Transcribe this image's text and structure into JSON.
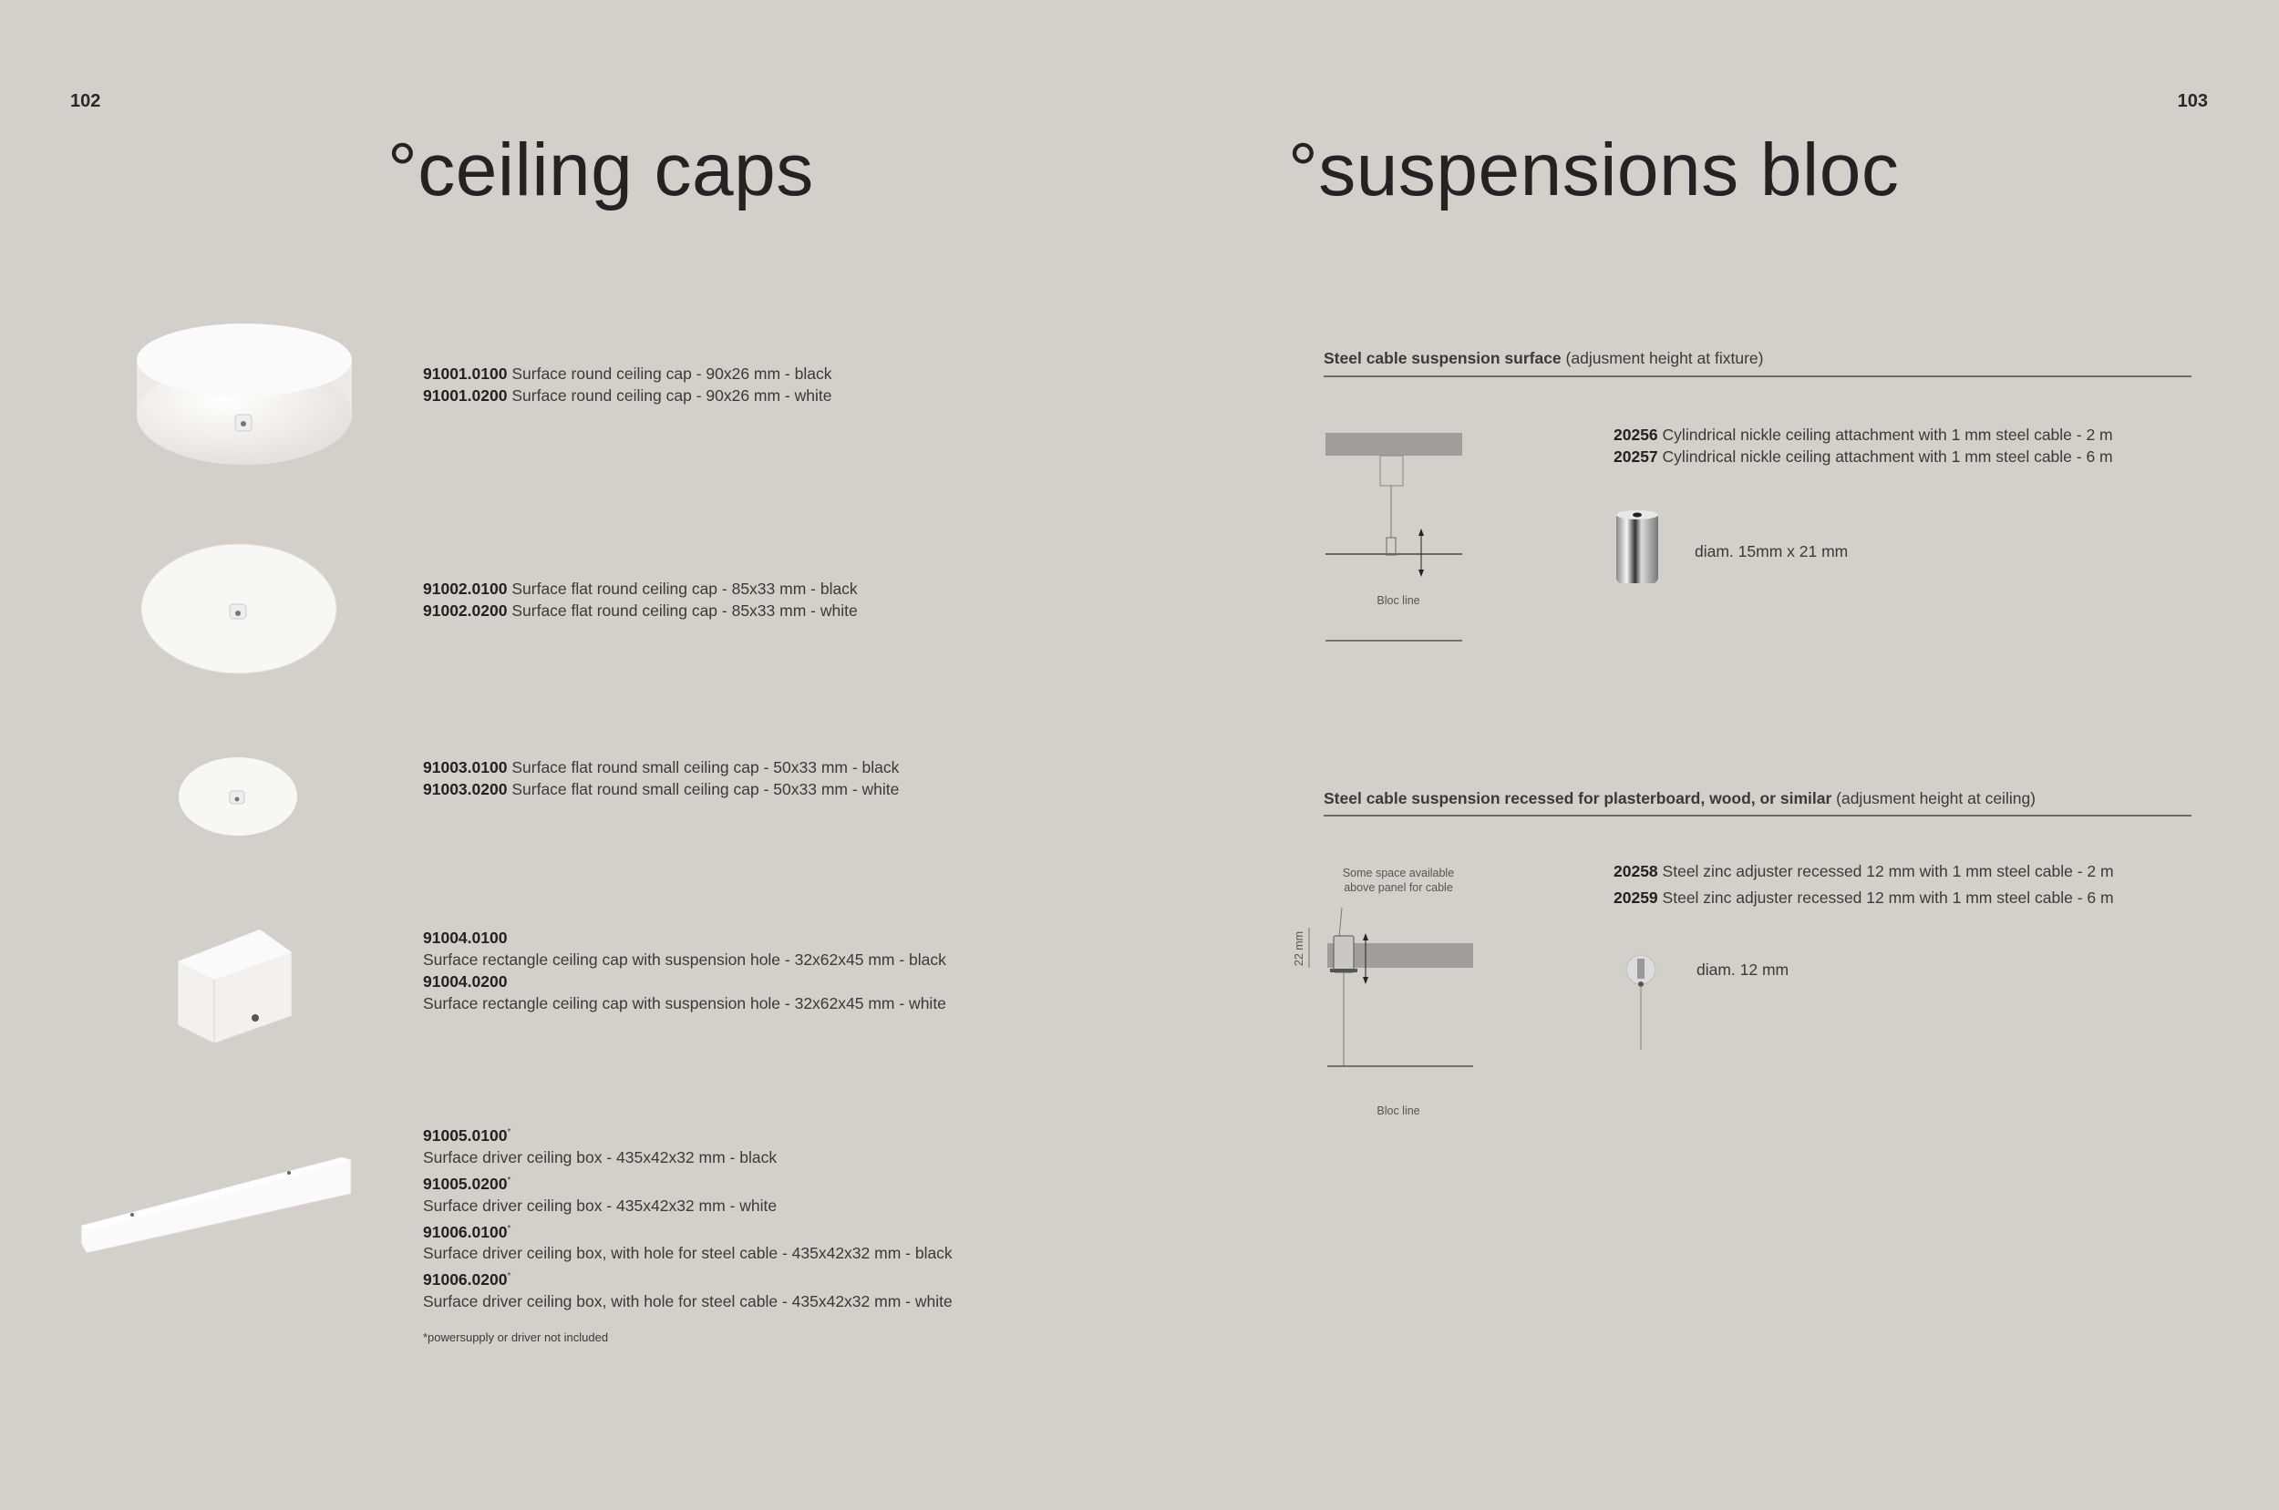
{
  "left_page": {
    "page_number": "102",
    "title": "°ceiling caps",
    "products": [
      {
        "lines": [
          {
            "code": "91001.0100",
            "desc": "Surface round ceiling cap - 90x26 mm - black"
          },
          {
            "code": "91001.0200",
            "desc": "Surface round ceiling cap - 90x26 mm - white"
          }
        ]
      },
      {
        "lines": [
          {
            "code": "91002.0100",
            "desc": "Surface flat round ceiling cap - 85x33 mm - black"
          },
          {
            "code": "91002.0200",
            "desc": "Surface flat round ceiling cap - 85x33 mm - white"
          }
        ]
      },
      {
        "lines": [
          {
            "code": "91003.0100",
            "desc": "Surface flat round small ceiling cap - 50x33 mm - black"
          },
          {
            "code": "91003.0200",
            "desc": "Surface flat round small ceiling cap - 50x33 mm - white"
          }
        ]
      },
      {
        "lines": [
          {
            "code": "91004.0100",
            "desc": "Surface rectangle ceiling cap with suspension hole - 32x62x45 mm - black"
          },
          {
            "code": "91004.0200",
            "desc": "Surface rectangle ceiling cap with suspension hole - 32x62x45 mm - white"
          }
        ]
      },
      {
        "lines": [
          {
            "code": "91005.0100",
            "mark": "*",
            "desc": "Surface driver ceiling box - 435x42x32 mm - black"
          },
          {
            "code": "91005.0200",
            "mark": "*",
            "desc": "Surface driver ceiling box - 435x42x32 mm - white"
          },
          {
            "code": "91006.0100",
            "mark": "*",
            "desc": "Surface driver ceiling box, with hole for steel cable - 435x42x32 mm - black"
          },
          {
            "code": "91006.0200",
            "mark": "*",
            "desc": "Surface driver ceiling box, with hole for steel cable - 435x42x32 mm - white"
          }
        ]
      }
    ],
    "footnote": "*powersupply or driver not included"
  },
  "right_page": {
    "page_number": "103",
    "title": "°suspensions bloc",
    "sections": [
      {
        "heading_bold": "Steel cable suspension surface",
        "heading_note": "(adjusment height at fixture)",
        "lines": [
          {
            "code": "20256",
            "desc": "Cylindrical nickle ceiling attachment with 1 mm steel cable - 2 m"
          },
          {
            "code": "20257",
            "desc": "Cylindrical nickle ceiling attachment with 1 mm steel cable - 6 m"
          }
        ],
        "dimension": "diam. 15mm x 21 mm",
        "diagram_label": "Bloc line"
      },
      {
        "heading_bold": "Steel cable suspension recessed for plasterboard, wood, or similar",
        "heading_note": "(adjusment height at ceiling)",
        "lines": [
          {
            "code": "20258",
            "desc": "Steel zinc adjuster recessed 12 mm with 1 mm steel cable - 2 m"
          },
          {
            "code": "20259",
            "desc": "Steel zinc adjuster recessed 12 mm with 1 mm steel cable - 6 m"
          }
        ],
        "dimension": "diam. 12 mm",
        "diagram_note_1": "Some space available",
        "diagram_note_2": "above panel for cable",
        "diagram_measure": "22 mm",
        "diagram_label": "Bloc line"
      }
    ]
  }
}
